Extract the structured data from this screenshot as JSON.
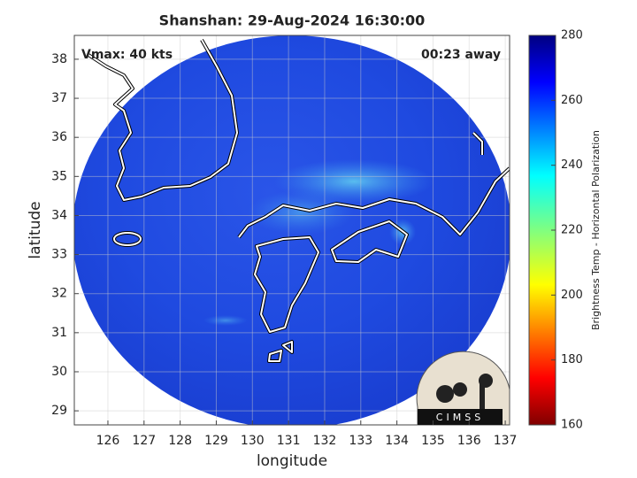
{
  "plot": {
    "title": "Shanshan: 29-Aug-2024 16:30:00",
    "xlabel": "longitude",
    "ylabel": "latitude",
    "xlim": [
      125.07,
      137.12
    ],
    "ylim": [
      28.64,
      38.61
    ],
    "xticks": [
      126,
      127,
      128,
      129,
      130,
      131,
      132,
      133,
      134,
      135,
      136,
      137
    ],
    "yticks": [
      29,
      30,
      31,
      32,
      33,
      34,
      35,
      36,
      37,
      38
    ],
    "grid": true,
    "annotations": [
      "Vmax: 40 kts",
      "00:23 away"
    ],
    "logo": "CIMSS",
    "colorbar": {
      "label": "Brightness Temp - Horizontal Polarization",
      "lim": [
        160,
        280
      ],
      "ticks": [
        160,
        180,
        200,
        220,
        240,
        260,
        280
      ]
    }
  }
}
